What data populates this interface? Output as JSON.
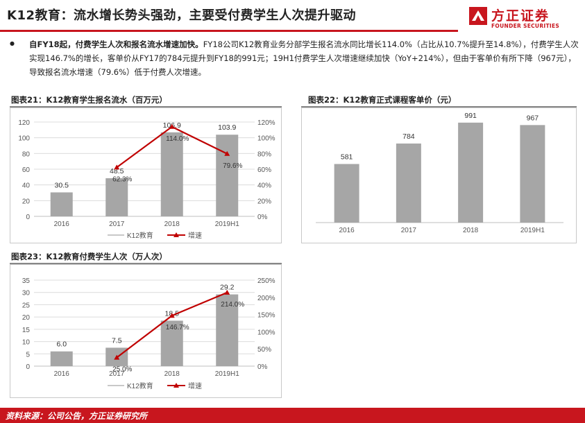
{
  "header": {
    "title": "K12教育：流水增长势头强劲，主要受付费学生人次提升驱动",
    "logo_cn": "方正证券",
    "logo_en": "FOUNDER SECURITIES",
    "brand_color": "#c8161e"
  },
  "summary": {
    "bullet": "●",
    "lead": "自FY18起，付费学生人次和报名流水增速加快。",
    "body": "FY18公司K12教育业务分部学生报名流水同比增长114.0%（占比从10.7%提升至14.8%），付费学生人次实现146.7%的增长，客单价从FY17的784元提升到FY18的991元；19H1付费学生人次增速继续加快（YoY+214%），但由于客单价有所下降（967元），导致报名流水增速（79.6%）低于付费人次增速。"
  },
  "chart_titles": {
    "c21": "图表21：K12教育学生报名流水（百万元）",
    "c22": "图表22：K12教育正式课程客单价（元）",
    "c23": "图表23：K12教育付费学生人次（万人次）"
  },
  "footer": {
    "source": "资料来源：公司公告，方正证券研究所"
  },
  "chart_data": [
    {
      "id": "c21",
      "type": "bar",
      "categories": [
        "2016",
        "2017",
        "2018",
        "2019H1"
      ],
      "series": [
        {
          "name": "K12教育",
          "kind": "bar",
          "values": [
            30.5,
            48.5,
            106.9,
            103.9
          ]
        },
        {
          "name": "增速",
          "kind": "line",
          "axis": "right",
          "values": [
            null,
            62.3,
            114.0,
            79.6
          ]
        }
      ],
      "bar_labels": [
        "30.5",
        "48.5",
        "106.9",
        "103.9"
      ],
      "line_labels": [
        "",
        "62.3%",
        "114.0%",
        "79.6%"
      ],
      "yleft": {
        "min": 0,
        "max": 120,
        "ticks": [
          "0",
          "20",
          "40",
          "60",
          "80",
          "100",
          "120"
        ]
      },
      "yright": {
        "min": 0,
        "max": 120,
        "ticks": [
          "0%",
          "20%",
          "40%",
          "60%",
          "80%",
          "100%",
          "120%"
        ]
      },
      "legend": [
        "K12教育",
        "增速"
      ],
      "legend_position": "bottom",
      "bar_color": "#a6a6a6",
      "line_color": "#c00000"
    },
    {
      "id": "c22",
      "type": "bar",
      "categories": [
        "2016",
        "2017",
        "2018",
        "2019H1"
      ],
      "series": [
        {
          "name": "",
          "kind": "bar",
          "values": [
            581,
            784,
            991,
            967
          ]
        }
      ],
      "bar_labels": [
        "581",
        "784",
        "991",
        "967"
      ],
      "ylim": [
        0,
        1100
      ],
      "bar_color": "#a6a6a6"
    },
    {
      "id": "c23",
      "type": "bar",
      "categories": [
        "2016",
        "2017",
        "2018",
        "2019H1"
      ],
      "series": [
        {
          "name": "K12教育",
          "kind": "bar",
          "values": [
            6.0,
            7.5,
            18.5,
            29.2
          ]
        },
        {
          "name": "增速",
          "kind": "line",
          "axis": "right",
          "values": [
            null,
            25.0,
            146.7,
            214.0
          ]
        }
      ],
      "bar_labels": [
        "6.0",
        "7.5",
        "18.5",
        "29.2"
      ],
      "line_labels": [
        "",
        "25.0%",
        "146.7%",
        "214.0%"
      ],
      "yleft": {
        "min": 0,
        "max": 35,
        "ticks": [
          "0",
          "5",
          "10",
          "15",
          "20",
          "25",
          "30",
          "35"
        ]
      },
      "yright": {
        "min": 0,
        "max": 250,
        "ticks": [
          "0%",
          "50%",
          "100%",
          "150%",
          "200%",
          "250%"
        ]
      },
      "legend": [
        "K12教育",
        "增速"
      ],
      "legend_position": "bottom",
      "bar_color": "#a6a6a6",
      "line_color": "#c00000"
    }
  ]
}
